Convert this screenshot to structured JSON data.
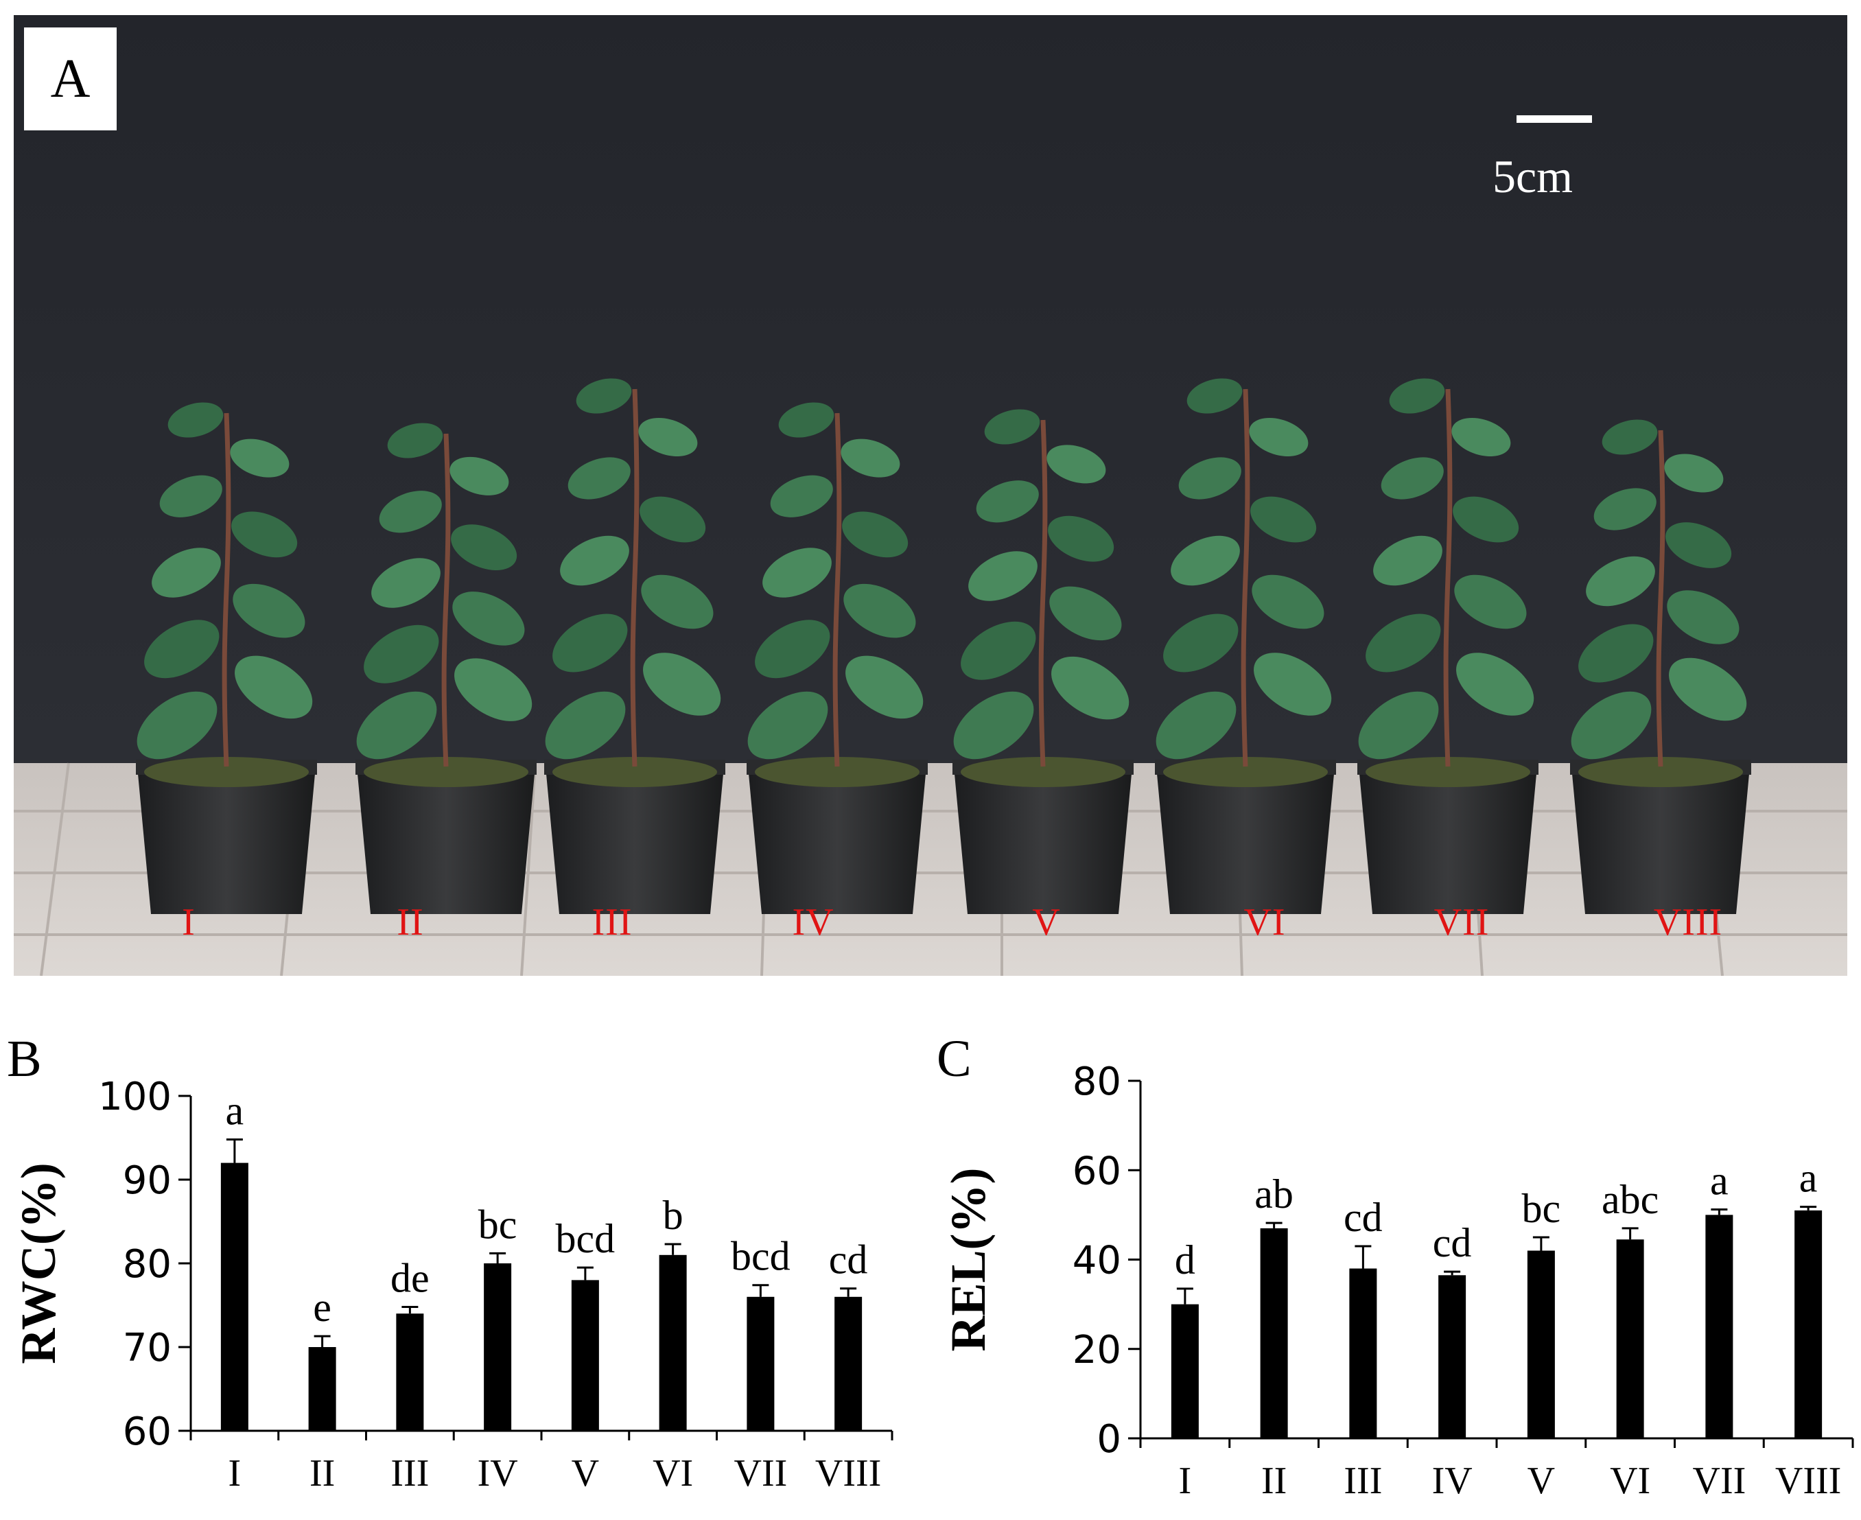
{
  "panel_a": {
    "letter": "A",
    "scale_bar": "5cm",
    "pot_labels": [
      "I",
      "II",
      "III",
      "IV",
      "V",
      "VI",
      "VII",
      "VIII"
    ]
  },
  "chart_data": [
    {
      "type": "bar",
      "panel": "B",
      "categories": [
        "I",
        "II",
        "III",
        "IV",
        "V",
        "VI",
        "VII",
        "VIII"
      ],
      "values": [
        92,
        70,
        74,
        80,
        78,
        81,
        76,
        76
      ],
      "errors": [
        2.8,
        1.3,
        0.8,
        1.2,
        1.5,
        1.3,
        1.4,
        1.0
      ],
      "significance": [
        "a",
        "e",
        "de",
        "bc",
        "bcd",
        "b",
        "bcd",
        "cd"
      ],
      "ylabel": "RWC(%)",
      "xlabel": "",
      "ylim": [
        60,
        100
      ],
      "yticks": [
        60,
        70,
        80,
        90,
        100
      ],
      "bar_color": "#000000"
    },
    {
      "type": "bar",
      "panel": "C",
      "categories": [
        "I",
        "II",
        "III",
        "IV",
        "V",
        "VI",
        "VII",
        "VIII"
      ],
      "values": [
        30,
        47,
        38,
        36.5,
        42,
        44.5,
        50,
        51
      ],
      "errors": [
        3.5,
        1.2,
        5.0,
        0.8,
        3.0,
        2.5,
        1.2,
        0.8
      ],
      "significance": [
        "d",
        "ab",
        "cd",
        "cd",
        "bc",
        "abc",
        "a",
        "a"
      ],
      "ylabel": "REL(%)",
      "xlabel": "",
      "ylim": [
        0,
        80
      ],
      "yticks": [
        0,
        20,
        40,
        60,
        80
      ],
      "bar_color": "#000000"
    }
  ]
}
